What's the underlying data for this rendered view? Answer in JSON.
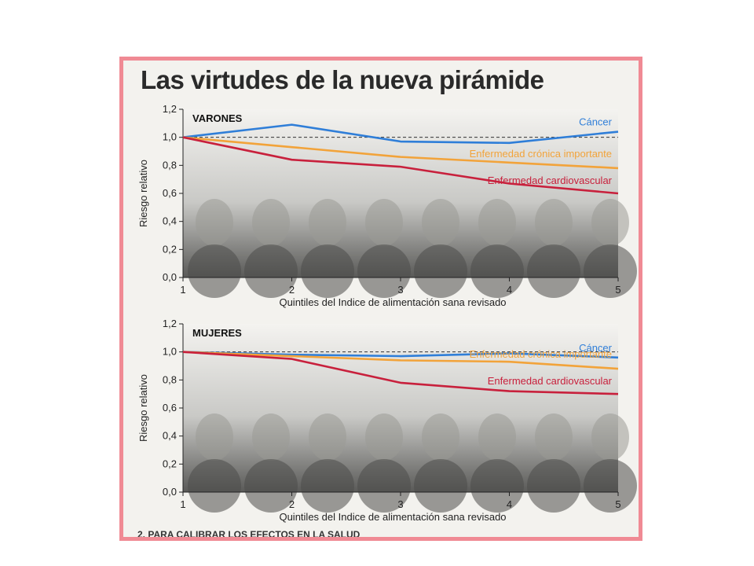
{
  "title": "Las virtudes de la nueva pirámide",
  "colors": {
    "cancer": "#2f7ed8",
    "chronic": "#f2a33a",
    "cardio": "#c8203c",
    "frame": "#f08a94"
  },
  "chart_data": [
    {
      "type": "line",
      "panel_title": "VARONES",
      "xlabel": "Quintiles del Indice de alimentación sana revisado",
      "ylabel": "Riesgo relativo",
      "x": [
        1,
        2,
        3,
        4,
        5
      ],
      "x_tick_labels": [
        "1",
        "2",
        "3",
        "4",
        "5"
      ],
      "xlim": [
        1,
        5
      ],
      "ylim": [
        0,
        1.2
      ],
      "y_ticks": [
        0,
        0.2,
        0.4,
        0.6,
        0.8,
        1.0,
        1.2
      ],
      "y_tick_labels": [
        "0,0",
        "0,2",
        "0,4",
        "0,6",
        "0,8",
        "1,0",
        "1,2"
      ],
      "reference_line": 1.0,
      "series": [
        {
          "name": "Cáncer",
          "color_key": "cancer",
          "values": [
            1.0,
            1.09,
            0.97,
            0.96,
            1.04
          ]
        },
        {
          "name": "Enfermedad crónica importante",
          "color_key": "chronic",
          "values": [
            1.0,
            0.93,
            0.86,
            0.82,
            0.78
          ]
        },
        {
          "name": "Enfermedad cardiovascular",
          "color_key": "cardio",
          "values": [
            1.0,
            0.84,
            0.79,
            0.67,
            0.6
          ]
        }
      ]
    },
    {
      "type": "line",
      "panel_title": "MUJERES",
      "xlabel": "Quintiles del Indice de alimentación sana revisado",
      "ylabel": "Riesgo relativo",
      "x": [
        1,
        2,
        3,
        4,
        5
      ],
      "x_tick_labels": [
        "1",
        "2",
        "3",
        "4",
        "5"
      ],
      "xlim": [
        1,
        5
      ],
      "ylim": [
        0,
        1.2
      ],
      "y_ticks": [
        0,
        0.2,
        0.4,
        0.6,
        0.8,
        1.0,
        1.2
      ],
      "y_tick_labels": [
        "0,0",
        "0,2",
        "0,4",
        "0,6",
        "0,8",
        "1,0",
        "1,2"
      ],
      "reference_line": 1.0,
      "series": [
        {
          "name": "Cáncer",
          "color_key": "cancer",
          "values": [
            1.0,
            0.98,
            0.97,
            0.99,
            0.96
          ]
        },
        {
          "name": "Enfermedad crónica importante",
          "color_key": "chronic",
          "values": [
            1.0,
            0.97,
            0.94,
            0.93,
            0.88
          ]
        },
        {
          "name": "Enfermedad cardiovascular",
          "color_key": "cardio",
          "values": [
            1.0,
            0.95,
            0.78,
            0.72,
            0.7
          ]
        }
      ]
    }
  ],
  "footer": "2. PARA CALIBRAR LOS EFECTOS EN LA SALUD"
}
